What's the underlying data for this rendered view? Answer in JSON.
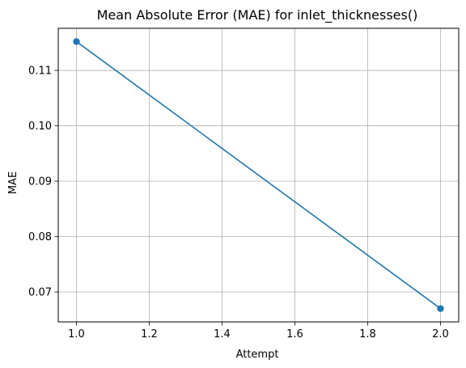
{
  "chart_data": {
    "type": "line",
    "title": "Mean Absolute Error (MAE) for inlet_thicknesses()",
    "xlabel": "Attempt",
    "ylabel": "MAE",
    "x": [
      1.0,
      2.0
    ],
    "series": [
      {
        "values": [
          0.1152,
          0.067
        ],
        "color": "#1f77b4",
        "marker": "circle"
      }
    ],
    "xlim": [
      0.95,
      2.05
    ],
    "ylim": [
      0.0646,
      0.1176
    ],
    "xticks": [
      1.0,
      1.2,
      1.4,
      1.6,
      1.8,
      2.0
    ],
    "xtick_labels": [
      "1.0",
      "1.2",
      "1.4",
      "1.6",
      "1.8",
      "2.0"
    ],
    "yticks": [
      0.07,
      0.08,
      0.09,
      0.1,
      0.11
    ],
    "ytick_labels": [
      "0.07",
      "0.08",
      "0.09",
      "0.10",
      "0.11"
    ],
    "grid": true
  }
}
